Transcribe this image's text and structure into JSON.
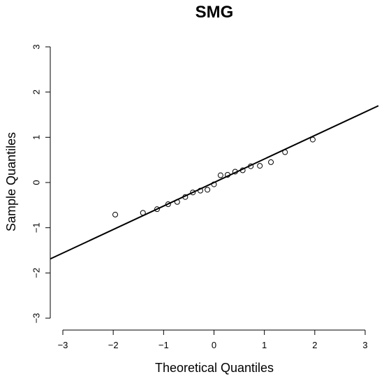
{
  "chart_data": {
    "type": "scatter",
    "title": "SMG",
    "xlabel": "Theoretical Quantiles",
    "ylabel": "Sample Quantiles",
    "xlim": [
      -3,
      3
    ],
    "ylim": [
      -3,
      3
    ],
    "x_ticks": [
      "-3",
      "-2",
      "-1",
      "0",
      "1",
      "2",
      "3"
    ],
    "y_ticks": [
      "-3",
      "-2",
      "-1",
      "0",
      "1",
      "2",
      "3"
    ],
    "grid": false,
    "legend": "none",
    "reference_line": {
      "slope": 0.52,
      "intercept": 0.0
    },
    "points": {
      "x": [
        -1.96,
        -1.41,
        -1.13,
        -0.91,
        -0.73,
        -0.57,
        -0.42,
        -0.27,
        -0.13,
        0.0,
        0.13,
        0.27,
        0.42,
        0.57,
        0.73,
        0.91,
        1.13,
        1.41,
        1.96
      ],
      "y": [
        -0.71,
        -0.67,
        -0.59,
        -0.48,
        -0.43,
        -0.32,
        -0.22,
        -0.18,
        -0.16,
        -0.04,
        0.16,
        0.17,
        0.24,
        0.27,
        0.36,
        0.37,
        0.45,
        0.67,
        0.95
      ]
    }
  }
}
